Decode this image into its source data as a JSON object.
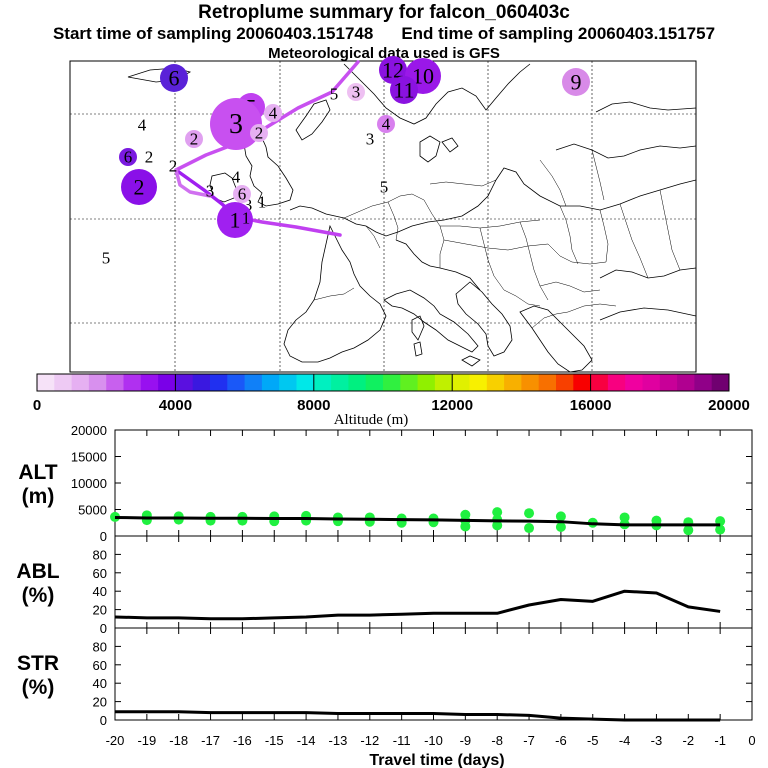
{
  "header": {
    "title": "Retroplume summary for falcon_060403c",
    "start_label": "Start time of sampling 20060403.151748",
    "end_label": "End time of sampling 20060403.151757",
    "met_label": "Meteorological data used is GFS"
  },
  "map": {
    "plume_color": "#c040f0",
    "clusters": [
      {
        "label": "6",
        "size": 2,
        "color": "#5a22d8"
      },
      {
        "label": "12",
        "size": 2,
        "color": "#8a12e0"
      },
      {
        "label": "10",
        "size": 3,
        "color": "#9a18e8"
      },
      {
        "label": "11",
        "size": 2,
        "color": "#8a12e0"
      },
      {
        "label": "9",
        "size": 2,
        "color": "#d88ae8"
      },
      {
        "label": "5",
        "size": 0,
        "color": ""
      },
      {
        "label": "3",
        "size": 1,
        "color": "#eec0f2"
      },
      {
        "label": "4",
        "size": 0,
        "color": ""
      },
      {
        "label": "5",
        "size": 2,
        "color": "#c040f0"
      },
      {
        "label": "3",
        "size": 4,
        "color": "#c850f0"
      },
      {
        "label": "4",
        "size": 1,
        "color": "#d880ee"
      },
      {
        "label": "2",
        "size": 1,
        "color": "#e0a0f0"
      },
      {
        "label": "3",
        "size": 0,
        "color": ""
      },
      {
        "label": "2",
        "size": 1,
        "color": "#e6b0f2"
      },
      {
        "label": "4",
        "size": 1,
        "color": "#e6b0f2"
      },
      {
        "label": "3",
        "size": 0,
        "color": ""
      },
      {
        "label": "6",
        "size": 1,
        "color": "#7a1ae0"
      },
      {
        "label": "2",
        "size": 0,
        "color": ""
      },
      {
        "label": "2",
        "size": 0,
        "color": ""
      },
      {
        "label": "2",
        "size": 3,
        "color": "#8a10e8"
      },
      {
        "label": "3",
        "size": 0,
        "color": ""
      },
      {
        "label": "4",
        "size": 0,
        "color": ""
      },
      {
        "label": "6",
        "size": 1,
        "color": "#e6b0f2"
      },
      {
        "label": "1",
        "size": 0,
        "color": ""
      },
      {
        "label": "5",
        "size": 0,
        "color": ""
      },
      {
        "label": "1",
        "size": 3,
        "color": "#a020f0"
      },
      {
        "label": "1",
        "size": 0,
        "color": ""
      },
      {
        "label": "5",
        "size": 0,
        "color": ""
      }
    ]
  },
  "colorbar": {
    "title": "Altitude (m)",
    "ticks": [
      "0",
      "4000",
      "8000",
      "12000",
      "16000",
      "20000"
    ],
    "colors": [
      "#f6e2f8",
      "#eecaf4",
      "#e6b0f2",
      "#d890ee",
      "#c860ee",
      "#b030f0",
      "#9810f0",
      "#7a00e8",
      "#5a10e0",
      "#3a18e0",
      "#2030f0",
      "#1a58f8",
      "#1080f8",
      "#00a8f8",
      "#00c8f0",
      "#00e8e8",
      "#00f0c0",
      "#00f0a0",
      "#00f080",
      "#10f060",
      "#30f040",
      "#60f020",
      "#90f000",
      "#c0f000",
      "#e0f000",
      "#f8f000",
      "#f8d000",
      "#f8b000",
      "#f89000",
      "#f87000",
      "#f84000",
      "#f80000",
      "#f80040",
      "#f80080",
      "#f000a0",
      "#e000a0",
      "#c80098",
      "#b00090",
      "#900088",
      "#700070"
    ]
  },
  "chart_data": [
    {
      "type": "line",
      "panel": "ALT",
      "ylabel": "ALT (m)",
      "ylim": [
        0,
        20000
      ],
      "yticks": [
        "0",
        "5000",
        "10000",
        "15000",
        "20000"
      ],
      "x": [
        -20,
        -19,
        -18,
        -17,
        -16,
        -15,
        -14,
        -13,
        -12,
        -11,
        -10,
        -9,
        -8,
        -7,
        -6,
        -5,
        -4,
        -3,
        -2,
        -1
      ],
      "values": [
        3500,
        3400,
        3400,
        3350,
        3350,
        3300,
        3300,
        3200,
        3150,
        3100,
        3050,
        2950,
        2850,
        2800,
        2700,
        2300,
        2100,
        2100,
        2100,
        2100
      ],
      "scatter": [
        {
          "x": -20,
          "y": 3600
        },
        {
          "x": -19,
          "y": 3900
        },
        {
          "x": -19,
          "y": 3000
        },
        {
          "x": -18,
          "y": 3700
        },
        {
          "x": -18,
          "y": 3100
        },
        {
          "x": -17,
          "y": 3600
        },
        {
          "x": -17,
          "y": 2900
        },
        {
          "x": -16,
          "y": 3600
        },
        {
          "x": -16,
          "y": 2900
        },
        {
          "x": -15,
          "y": 3700
        },
        {
          "x": -15,
          "y": 2800
        },
        {
          "x": -14,
          "y": 3800
        },
        {
          "x": -14,
          "y": 2900
        },
        {
          "x": -13,
          "y": 3500
        },
        {
          "x": -13,
          "y": 2800
        },
        {
          "x": -12,
          "y": 3500
        },
        {
          "x": -12,
          "y": 2700
        },
        {
          "x": -11,
          "y": 3300
        },
        {
          "x": -11,
          "y": 2500
        },
        {
          "x": -10,
          "y": 3300
        },
        {
          "x": -10,
          "y": 2600
        },
        {
          "x": -9,
          "y": 4000
        },
        {
          "x": -9,
          "y": 2900
        },
        {
          "x": -9,
          "y": 1800
        },
        {
          "x": -8,
          "y": 4500
        },
        {
          "x": -8,
          "y": 3100
        },
        {
          "x": -8,
          "y": 2000
        },
        {
          "x": -7,
          "y": 4300
        },
        {
          "x": -7,
          "y": 1500
        },
        {
          "x": -6,
          "y": 3700
        },
        {
          "x": -6,
          "y": 1700
        },
        {
          "x": -5,
          "y": 2500
        },
        {
          "x": -4,
          "y": 3500
        },
        {
          "x": -4,
          "y": 2200
        },
        {
          "x": -3,
          "y": 2900
        },
        {
          "x": -3,
          "y": 2000
        },
        {
          "x": -2,
          "y": 2600
        },
        {
          "x": -2,
          "y": 1100
        },
        {
          "x": -1,
          "y": 2800
        },
        {
          "x": -1,
          "y": 1200
        }
      ],
      "scatter_color": "#20f040"
    },
    {
      "type": "line",
      "panel": "ABL",
      "ylabel": "ABL (%)",
      "ylim": [
        0,
        100
      ],
      "yticks": [
        "0",
        "20",
        "40",
        "60",
        "80"
      ],
      "x": [
        -20,
        -19,
        -18,
        -17,
        -16,
        -15,
        -14,
        -13,
        -12,
        -11,
        -10,
        -9,
        -8,
        -7,
        -6,
        -5,
        -4,
        -3,
        -2,
        -1
      ],
      "values": [
        12,
        11,
        11,
        10,
        10,
        11,
        12,
        14,
        14,
        15,
        16,
        16,
        16,
        25,
        31,
        29,
        40,
        38,
        23,
        18
      ]
    },
    {
      "type": "line",
      "panel": "STR",
      "ylabel": "STR (%)",
      "ylim": [
        0,
        100
      ],
      "yticks": [
        "0",
        "20",
        "40",
        "60",
        "80"
      ],
      "xlabel": "Travel time (days)",
      "xticks": [
        "-20",
        "-19",
        "-18",
        "-17",
        "-16",
        "-15",
        "-14",
        "-13",
        "-12",
        "-11",
        "-10",
        "-9",
        "-8",
        "-7",
        "-6",
        "-5",
        "-4",
        "-3",
        "-2",
        "-1",
        "0"
      ],
      "x": [
        -20,
        -19,
        -18,
        -17,
        -16,
        -15,
        -14,
        -13,
        -12,
        -11,
        -10,
        -9,
        -8,
        -7,
        -6,
        -5,
        -4,
        -3,
        -2,
        -1
      ],
      "values": [
        9,
        9,
        9,
        8,
        8,
        8,
        8,
        7,
        7,
        7,
        7,
        6,
        6,
        5,
        2,
        1,
        0,
        0,
        0,
        0
      ]
    }
  ]
}
